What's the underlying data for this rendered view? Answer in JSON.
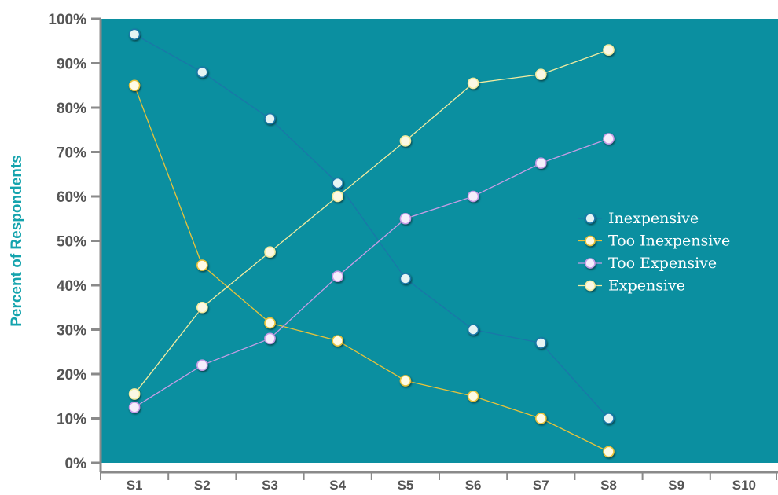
{
  "chart_data": {
    "type": "line",
    "title": "",
    "xlabel": "",
    "ylabel": "Percent of Respondents",
    "categories": [
      "S1",
      "S2",
      "S3",
      "S4",
      "S5",
      "S6",
      "S7",
      "S8",
      "S9",
      "S10"
    ],
    "yticks": [
      "0%",
      "10%",
      "20%",
      "30%",
      "40%",
      "50%",
      "60%",
      "70%",
      "80%",
      "90%",
      "100%"
    ],
    "ylim": [
      0,
      100
    ],
    "grid": false,
    "legend_position": "right",
    "plot_background": "#0b8fa0",
    "series": [
      {
        "name": "Inexpensive",
        "line_color": "#1a77a8",
        "marker_color": "#e6f4f4",
        "values": [
          96.5,
          88,
          77.5,
          63,
          41.5,
          30,
          27,
          10,
          null,
          null
        ]
      },
      {
        "name": "Too Inexpensive",
        "line_color": "#e8c23a",
        "marker_color": "#fffbe6",
        "values": [
          85,
          44.5,
          31.5,
          27.5,
          18.5,
          15,
          10,
          2.5,
          null,
          null
        ]
      },
      {
        "name": "Too Expensive",
        "line_color": "#c79de6",
        "marker_color": "#f6eefc",
        "values": [
          12.5,
          22,
          28,
          42,
          55,
          60,
          67.5,
          73,
          null,
          null
        ]
      },
      {
        "name": "Expensive",
        "line_color": "#f3eca0",
        "marker_color": "#fbf8e4",
        "values": [
          15.5,
          35,
          47.5,
          60,
          72.5,
          85.5,
          87.5,
          93,
          null,
          null
        ]
      }
    ]
  }
}
